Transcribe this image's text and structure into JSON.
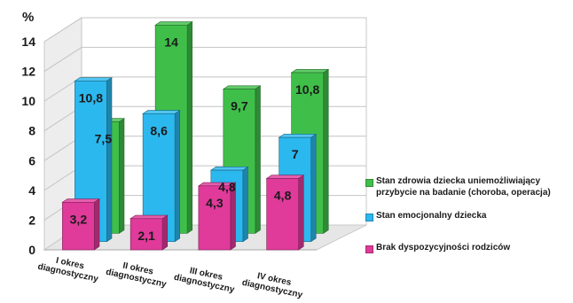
{
  "chart_data": {
    "type": "bar",
    "three_d": true,
    "ylabel": "%",
    "ylim": [
      0,
      14
    ],
    "yticks": [
      "0",
      "2",
      "4",
      "6",
      "8",
      "10",
      "12",
      "14"
    ],
    "grid": true,
    "legend_position": "right",
    "categories": [
      [
        "I okres",
        "diagnostyczny"
      ],
      [
        "II okres",
        "diagnostyczny"
      ],
      [
        "III okres",
        "diagnostyczny"
      ],
      [
        "IV okres",
        "diagnostyczny"
      ]
    ],
    "series": [
      {
        "name": "Stan zdrowia dziecka uniemożliwiający przybycie na badanie  (choroba, operacja)",
        "legend_lines": [
          "Stan zdrowia dziecka uniemożliwiający",
          "przybycie na badanie  (choroba, operacja)"
        ],
        "values": [
          7.5,
          14,
          9.7,
          10.8
        ],
        "labels": [
          "7,5",
          "14",
          "9,7",
          "10,8"
        ],
        "color": "#3fbf4a"
      },
      {
        "name": "Stan emocjonalny dziecka",
        "legend_lines": [
          "Stan emocjonalny dziecka"
        ],
        "values": [
          10.8,
          8.6,
          4.8,
          7
        ],
        "labels": [
          "10,8",
          "8,6",
          "4,8",
          "7"
        ],
        "color": "#2bb8ee"
      },
      {
        "name": "Brak dyspozycyjności rodziców",
        "legend_lines": [
          "Brak dyspozycyjności rodziców"
        ],
        "values": [
          3.2,
          2.1,
          4.3,
          4.8
        ],
        "labels": [
          "3,2",
          "2,1",
          "4,3",
          "4,8"
        ],
        "color": "#e03a9a"
      }
    ]
  }
}
